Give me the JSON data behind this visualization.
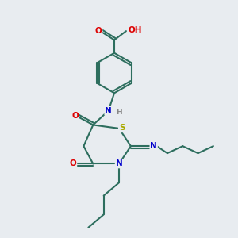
{
  "bg_color": "#e8ecf0",
  "bond_color": "#2d6e5e",
  "atom_colors": {
    "O": "#dd0000",
    "N": "#0000cc",
    "S": "#aaaa00",
    "H": "#888888",
    "C": "#000000"
  },
  "figsize": [
    3.0,
    3.0
  ],
  "dpi": 100
}
